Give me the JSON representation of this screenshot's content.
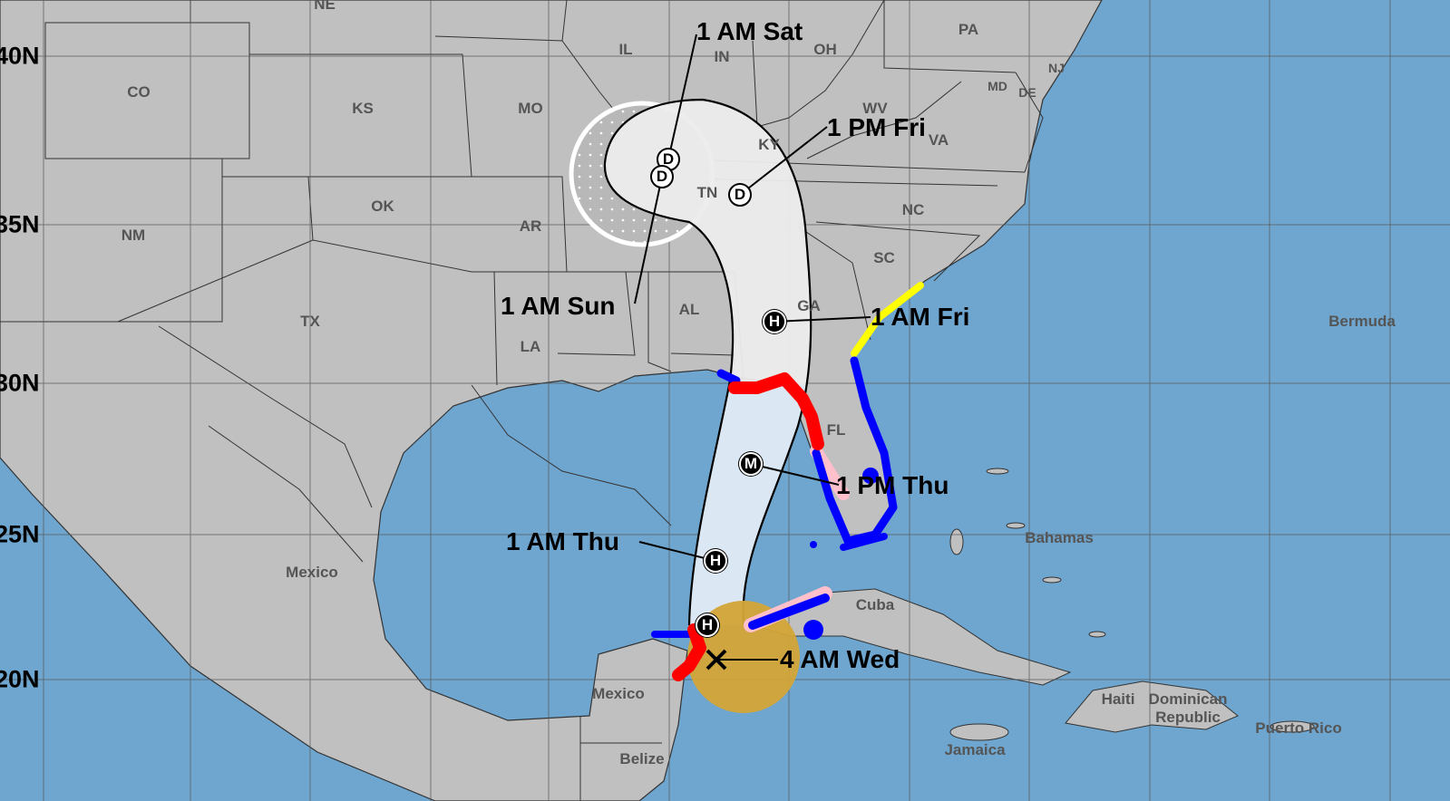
{
  "colors": {
    "ocean": "#6fa6cf",
    "land": "#c0c0c0",
    "cone_day1_3": "#dbe8f4",
    "cone_day4_5": "#ececec",
    "hurricane_warning": "#ff0000",
    "tropical_storm_warning": "#0000ff",
    "hurricane_watch": "#ffc0cb",
    "tropical_storm_watch": "#ffff00",
    "current_wind_field": "#d4a437"
  },
  "latitude_labels": [
    "40N",
    "35N",
    "30N",
    "25N",
    "20N"
  ],
  "region_labels": [
    "NE",
    "CO",
    "KS",
    "MO",
    "IL",
    "IN",
    "OH",
    "PA",
    "WV",
    "VA",
    "KY",
    "TN",
    "NC",
    "SC",
    "GA",
    "AL",
    "LA",
    "AR",
    "OK",
    "TX",
    "NM",
    "FL",
    "NJ",
    "MD",
    "DE",
    "Mexico",
    "Mexico",
    "Belize",
    "Cuba",
    "Bahamas",
    "Bermuda",
    "Jamaica",
    "Haiti",
    "Dominican Republic",
    "Puerto Rico"
  ],
  "track": [
    {
      "time": "4 AM Wed",
      "marker": "X",
      "type": "current position"
    },
    {
      "time": "",
      "marker": "H",
      "type": "hurricane"
    },
    {
      "time": "1 AM Thu",
      "marker": "H",
      "type": "hurricane"
    },
    {
      "time": "1 PM Thu",
      "marker": "M",
      "type": "major hurricane"
    },
    {
      "time": "1 AM Fri",
      "marker": "H",
      "type": "hurricane"
    },
    {
      "time": "1 PM Fri",
      "marker": "D",
      "type": "depression"
    },
    {
      "time": "1 AM Sat",
      "marker": "D",
      "type": "depression"
    },
    {
      "time": "1 AM Sun",
      "marker": "D",
      "type": "depression"
    }
  ]
}
